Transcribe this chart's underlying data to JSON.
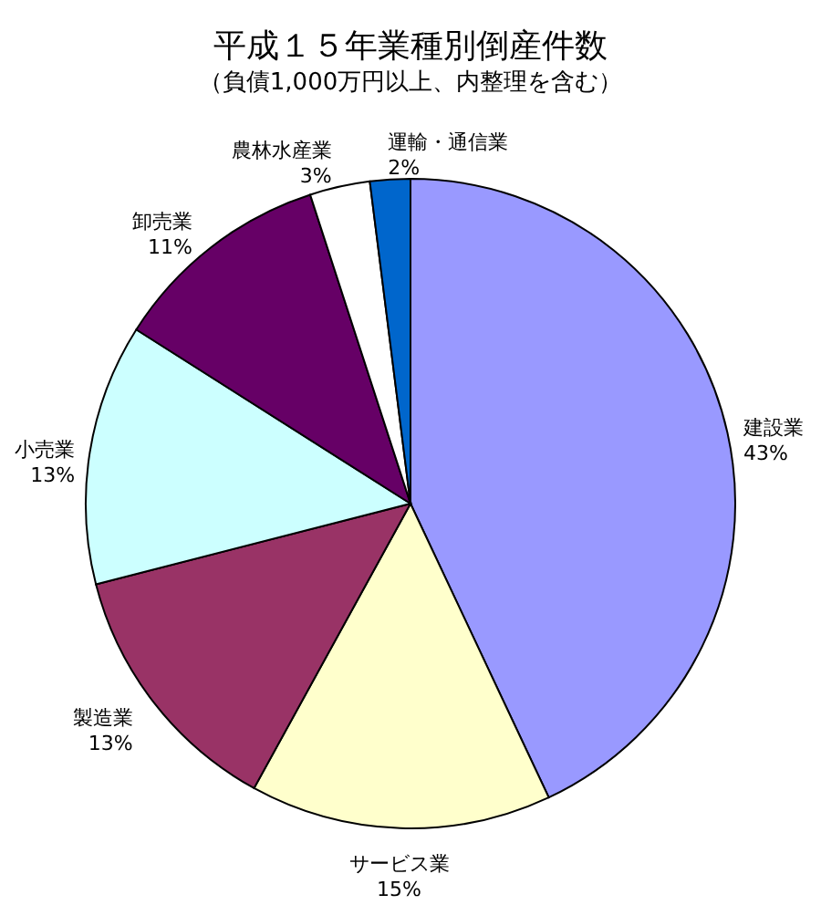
{
  "chart_data": {
    "type": "pie",
    "title": "平成１５年業種別倒産件数",
    "subtitle": "（負債1,000万円以上、内整理を含む）",
    "categories": [
      "建設業",
      "サービス業",
      "製造業",
      "小売業",
      "卸売業",
      "農林水産業",
      "運輸・通信業"
    ],
    "values": [
      43,
      15,
      13,
      13,
      11,
      3,
      2
    ],
    "value_labels": [
      "43%",
      "15%",
      "13%",
      "13%",
      "11%",
      "3%",
      "2%"
    ],
    "colors": [
      "#9999ff",
      "#ffffcc",
      "#993366",
      "#ccffff",
      "#660066",
      "#ffffff",
      "#0066cc"
    ]
  }
}
